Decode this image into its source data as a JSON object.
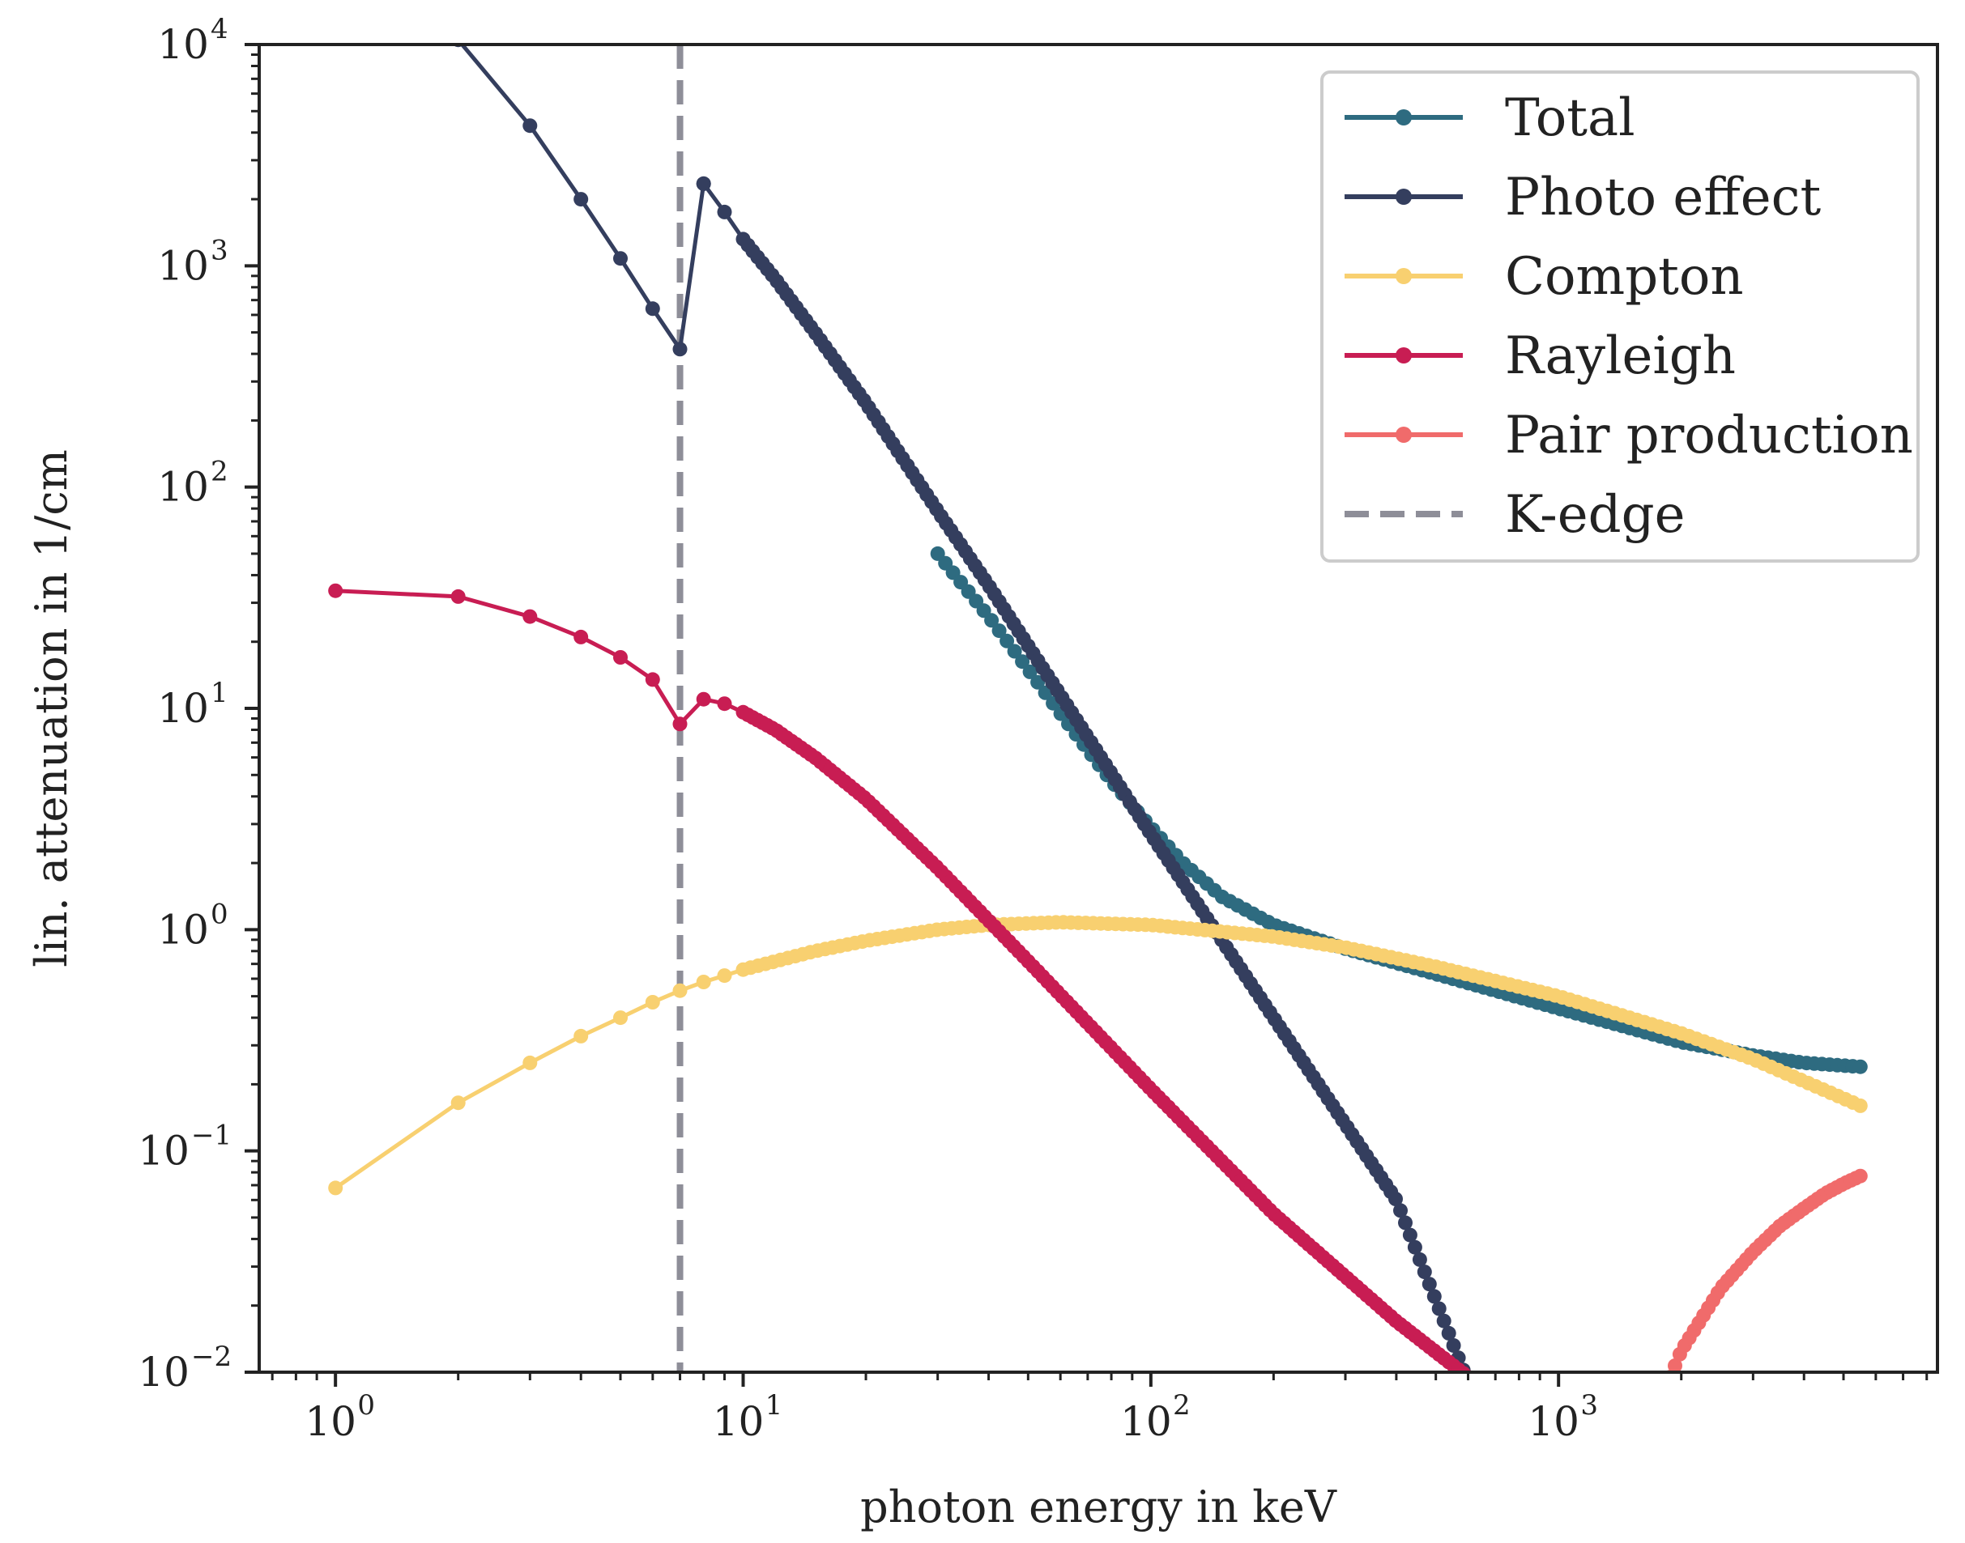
{
  "chart_data": {
    "type": "line",
    "title": "",
    "xlabel": "photon energy in keV",
    "ylabel": "lin. attenuation in 1/cm",
    "xscale": "log",
    "yscale": "log",
    "xlim": [
      0.65,
      8500
    ],
    "ylim": [
      0.01,
      10000
    ],
    "x_ticks": [
      {
        "base": "10",
        "exp": "0"
      },
      {
        "base": "10",
        "exp": "1"
      },
      {
        "base": "10",
        "exp": "2"
      },
      {
        "base": "10",
        "exp": "3"
      }
    ],
    "y_ticks": [
      {
        "base": "10",
        "exp": "−2"
      },
      {
        "base": "10",
        "exp": "−1"
      },
      {
        "base": "10",
        "exp": "0"
      },
      {
        "base": "10",
        "exp": "1"
      },
      {
        "base": "10",
        "exp": "2"
      },
      {
        "base": "10",
        "exp": "3"
      },
      {
        "base": "10",
        "exp": "4"
      }
    ],
    "grid": false,
    "legend_position": "top-right",
    "k_edge": {
      "name": "K-edge",
      "x": 7.0,
      "color": "#8e8e98"
    },
    "series": [
      {
        "name": "Total",
        "color": "#2e6b80",
        "x": [
          30,
          40,
          50,
          60,
          70,
          80,
          100,
          120,
          150,
          200,
          300,
          500,
          1000,
          2000,
          3000,
          4000,
          5500
        ],
        "y": [
          50,
          26,
          15,
          9.5,
          6.5,
          4.7,
          2.9,
          2.0,
          1.4,
          1.05,
          0.82,
          0.63,
          0.44,
          0.31,
          0.27,
          0.25,
          0.24
        ]
      },
      {
        "name": "Photo effect",
        "color": "#343e5e",
        "x": [
          2,
          3,
          4,
          5,
          6,
          7,
          8,
          9,
          10,
          12,
          15,
          20,
          30,
          40,
          60,
          100,
          200,
          400,
          600
        ],
        "y": [
          10500,
          4300,
          2000,
          1080,
          640,
          420,
          2350,
          1750,
          1320,
          870,
          500,
          240,
          78,
          36,
          11.5,
          2.7,
          0.4,
          0.06,
          0.009
        ]
      },
      {
        "name": "Compton",
        "color": "#f8d070",
        "x": [
          1,
          2,
          3,
          4,
          5,
          6,
          7,
          8,
          9,
          10,
          15,
          20,
          30,
          40,
          60,
          100,
          200,
          300,
          500,
          1000,
          2000,
          3000,
          5500
        ],
        "y": [
          0.068,
          0.165,
          0.25,
          0.33,
          0.4,
          0.47,
          0.53,
          0.58,
          0.62,
          0.66,
          0.8,
          0.89,
          1.0,
          1.05,
          1.08,
          1.05,
          0.93,
          0.83,
          0.68,
          0.5,
          0.34,
          0.26,
          0.16
        ]
      },
      {
        "name": "Rayleigh",
        "color": "#c81d53",
        "x": [
          1,
          2,
          3,
          4,
          5,
          6,
          7,
          8,
          9,
          10,
          12,
          15,
          20,
          30,
          50,
          100,
          200,
          400,
          600
        ],
        "y": [
          34,
          32,
          26,
          21,
          17,
          13.5,
          8.5,
          11,
          10.5,
          9.6,
          8.0,
          6.0,
          3.9,
          1.9,
          0.72,
          0.19,
          0.052,
          0.017,
          0.0095
        ]
      },
      {
        "name": "Pair production",
        "color": "#f06b6b",
        "x": [
          1880,
          2000,
          2500,
          3000,
          3500,
          4000,
          4500,
          5000,
          5500
        ],
        "y": [
          0.0095,
          0.0125,
          0.024,
          0.035,
          0.046,
          0.055,
          0.064,
          0.071,
          0.077
        ]
      }
    ]
  }
}
